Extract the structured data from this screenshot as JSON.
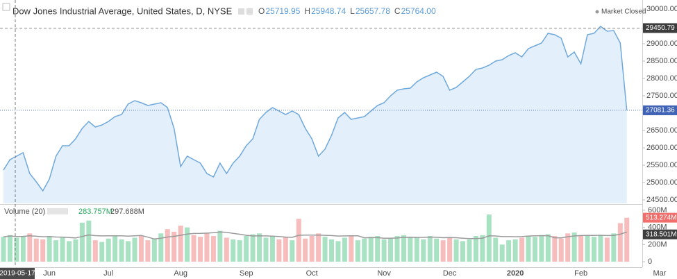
{
  "header": {
    "title": "Dow Jones Industrial Average, United States, D, NYSE",
    "ohlc": [
      {
        "key": "O",
        "value": "25719.95"
      },
      {
        "key": "H",
        "value": "25948.74"
      },
      {
        "key": "L",
        "value": "25657.78"
      },
      {
        "key": "C",
        "value": "25764.00"
      }
    ],
    "status": "Market Closed",
    "crosshair_date": "2019-05-17"
  },
  "chart_data": [
    {
      "type": "area",
      "color": "#6fa8dc",
      "fill": "#e3f0fb",
      "categories": [
        null,
        null,
        null,
        null,
        null,
        null,
        null,
        "Jun",
        null,
        null,
        null,
        null,
        null,
        null,
        null,
        null,
        "Jul",
        null,
        null,
        null,
        null,
        null,
        null,
        null,
        null,
        null,
        null,
        "Aug",
        null,
        null,
        null,
        null,
        null,
        null,
        null,
        null,
        null,
        "Sep",
        null,
        null,
        null,
        null,
        null,
        null,
        null,
        null,
        null,
        "Oct",
        null,
        null,
        null,
        null,
        null,
        null,
        null,
        null,
        null,
        null,
        "Nov",
        null,
        null,
        null,
        null,
        null,
        null,
        null,
        null,
        null,
        "Dec",
        null,
        null,
        null,
        null,
        null,
        null,
        null,
        null,
        null,
        "2020",
        null,
        null,
        null,
        null,
        null,
        null,
        null,
        null,
        null,
        "Feb",
        null,
        null,
        null,
        null,
        null,
        null,
        null,
        null,
        null,
        null,
        null,
        "Mar"
      ],
      "values": [
        25360,
        25660,
        25760,
        25860,
        25260,
        25020,
        24760,
        25100,
        25760,
        26060,
        26060,
        26260,
        26560,
        26760,
        26600,
        26660,
        26760,
        26900,
        26960,
        27260,
        27360,
        27300,
        27220,
        27260,
        27300,
        27160,
        26560,
        25460,
        25760,
        25660,
        25560,
        25260,
        25160,
        25560,
        25260,
        25560,
        25760,
        26060,
        26260,
        26820,
        27020,
        27160,
        27060,
        26960,
        27060,
        26960,
        26560,
        26260,
        25760,
        25960,
        26360,
        26860,
        27020,
        26820,
        26860,
        26900,
        27060,
        27220,
        27300,
        27500,
        27660,
        27700,
        27720,
        27900,
        28020,
        28100,
        28180,
        28060,
        27660,
        27740,
        27900,
        28060,
        28260,
        28300,
        28380,
        28500,
        28540,
        28660,
        28740,
        28620,
        28860,
        28940,
        29020,
        29300,
        29260,
        29160,
        28620,
        28760,
        28420,
        29260,
        29300,
        29500,
        29360,
        29380,
        29020,
        27081,
        null,
        null,
        null,
        null,
        null
      ],
      "ylim": [
        24400,
        30260
      ],
      "yticks": [
        {
          "value": 24500,
          "label": "24500.00"
        },
        {
          "value": 25000,
          "label": "25000.00"
        },
        {
          "value": 25500,
          "label": "25500.00"
        },
        {
          "value": 26000,
          "label": "26000.00"
        },
        {
          "value": 26500,
          "label": "26500.00"
        },
        {
          "value": 27000,
          "label": "27000.00"
        },
        {
          "value": 27500,
          "label": "27500.00"
        },
        {
          "value": 28000,
          "label": "28000.00"
        },
        {
          "value": 28500,
          "label": "28500.00"
        },
        {
          "value": 29000,
          "label": "29000.00"
        },
        {
          "value": 29500,
          "label": "29500.00"
        },
        {
          "value": 30000,
          "label": "30000.00"
        }
      ],
      "high_line": {
        "value": 29450.79,
        "label": "29450.79"
      },
      "last_line": {
        "value": 27081.36,
        "label": "27081.36"
      }
    },
    {
      "type": "bar",
      "title": "Volume (20)",
      "legend_values": [
        "283.757M",
        "297.688M"
      ],
      "up_color": "#a8e2c3",
      "down_color": "#f7bcbc",
      "ma_color": "#9a9a9a",
      "values": [
        290000000,
        310000000,
        280000000,
        300000000,
        330000000,
        270000000,
        260000000,
        300000000,
        250000000,
        280000000,
        240000000,
        260000000,
        455000000,
        480000000,
        250000000,
        230000000,
        270000000,
        300000000,
        260000000,
        240000000,
        280000000,
        300000000,
        250000000,
        270000000,
        330000000,
        380000000,
        350000000,
        420000000,
        400000000,
        310000000,
        290000000,
        330000000,
        300000000,
        360000000,
        280000000,
        260000000,
        250000000,
        300000000,
        320000000,
        330000000,
        280000000,
        300000000,
        260000000,
        290000000,
        250000000,
        500000000,
        270000000,
        300000000,
        330000000,
        290000000,
        260000000,
        240000000,
        280000000,
        300000000,
        250000000,
        270000000,
        290000000,
        300000000,
        260000000,
        280000000,
        300000000,
        310000000,
        290000000,
        280000000,
        260000000,
        300000000,
        270000000,
        250000000,
        280000000,
        260000000,
        240000000,
        260000000,
        300000000,
        310000000,
        550000000,
        280000000,
        200000000,
        250000000,
        260000000,
        280000000,
        300000000,
        290000000,
        310000000,
        320000000,
        300000000,
        270000000,
        330000000,
        340000000,
        310000000,
        300000000,
        290000000,
        310000000,
        280000000,
        330000000,
        450000000,
        513274000,
        null,
        null,
        null,
        null,
        null
      ],
      "last_label": "513.274M",
      "ma_last": {
        "value": 318501000,
        "label": "318.501M"
      },
      "ylim": [
        -64000000,
        648000000
      ],
      "yticks": [
        0,
        {
          "value": 200000000,
          "label": "200M"
        },
        {
          "value": 400000000,
          "label": "400M"
        },
        {
          "value": 600000000,
          "label": "600M"
        }
      ]
    }
  ]
}
